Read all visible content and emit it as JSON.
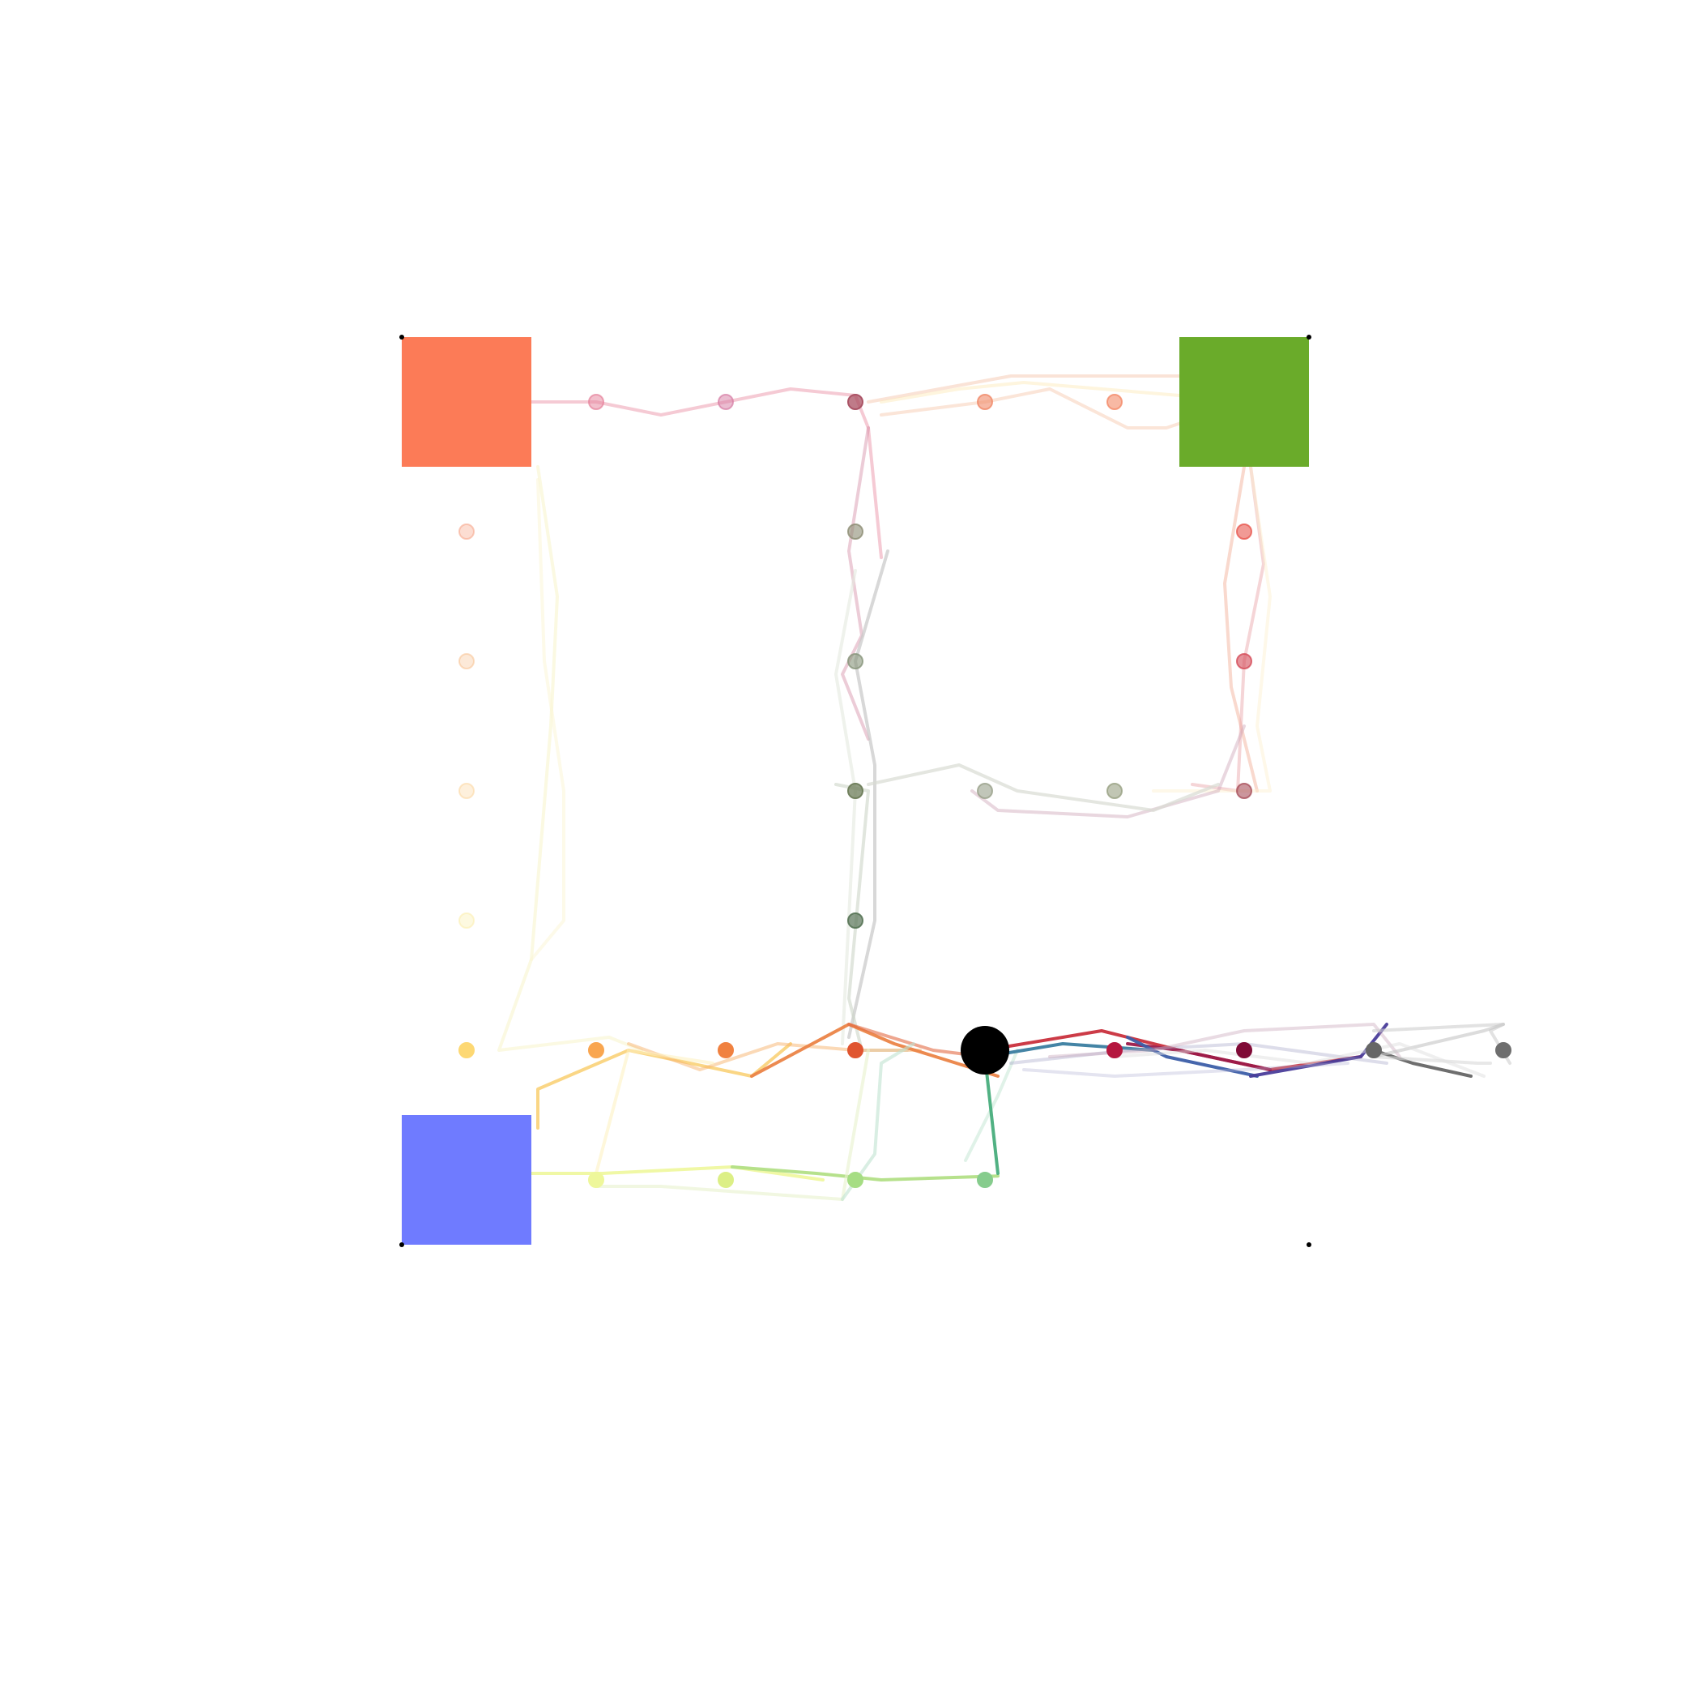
{
  "colors": {
    "background": "#ffffff",
    "agent": "#000000",
    "corner_marker": "#000000"
  },
  "grid": {
    "columns": 9,
    "rows": 8,
    "corner_markers": [
      [
        0,
        0
      ],
      [
        7,
        0
      ],
      [
        0,
        7
      ],
      [
        7,
        7
      ]
    ]
  },
  "goals": [
    {
      "name": "orange-goal",
      "cell": [
        0,
        0
      ],
      "color": "#fc7b57"
    },
    {
      "name": "green-goal",
      "cell": [
        6,
        0
      ],
      "color": "#6aab2a"
    },
    {
      "name": "blue-goal",
      "cell": [
        0,
        6
      ],
      "color": "#6f7bff"
    }
  ],
  "agent": {
    "cell": [
      4,
      5
    ]
  },
  "cell_markers": [
    {
      "cell": [
        1,
        0
      ],
      "color": "#e6809a",
      "opacity": 0.5
    },
    {
      "cell": [
        2,
        0
      ],
      "color": "#d67aa2",
      "opacity": 0.5
    },
    {
      "cell": [
        3,
        0
      ],
      "color": "#a94f62",
      "opacity": 0.75
    },
    {
      "cell": [
        4,
        0
      ],
      "color": "#f08868",
      "opacity": 0.6
    },
    {
      "cell": [
        5,
        0
      ],
      "color": "#f48a68",
      "opacity": 0.6
    },
    {
      "cell": [
        0,
        1
      ],
      "color": "#f7a98e",
      "opacity": 0.4
    },
    {
      "cell": [
        3,
        1
      ],
      "color": "#8c8c73",
      "opacity": 0.6
    },
    {
      "cell": [
        6,
        1
      ],
      "color": "#e8574f",
      "opacity": 0.6
    },
    {
      "cell": [
        0,
        2
      ],
      "color": "#f7c18f",
      "opacity": 0.35
    },
    {
      "cell": [
        3,
        2
      ],
      "color": "#87957a",
      "opacity": 0.6
    },
    {
      "cell": [
        6,
        2
      ],
      "color": "#d44b58",
      "opacity": 0.6
    },
    {
      "cell": [
        0,
        3
      ],
      "color": "#fbd59c",
      "opacity": 0.35
    },
    {
      "cell": [
        3,
        3
      ],
      "color": "#6e7d5a",
      "opacity": 0.75
    },
    {
      "cell": [
        4,
        3
      ],
      "color": "#98a08a",
      "opacity": 0.6
    },
    {
      "cell": [
        5,
        3
      ],
      "color": "#97a082",
      "opacity": 0.6
    },
    {
      "cell": [
        6,
        3
      ],
      "color": "#a9505b",
      "opacity": 0.6
    },
    {
      "cell": [
        0,
        4
      ],
      "color": "#fbefb1",
      "opacity": 0.4
    },
    {
      "cell": [
        3,
        4
      ],
      "color": "#587457",
      "opacity": 0.7
    },
    {
      "cell": [
        0,
        5
      ],
      "color": "#fdd873",
      "opacity": 1
    },
    {
      "cell": [
        1,
        5
      ],
      "color": "#f9a650",
      "opacity": 1
    },
    {
      "cell": [
        2,
        5
      ],
      "color": "#f08140",
      "opacity": 1
    },
    {
      "cell": [
        3,
        5
      ],
      "color": "#e05530",
      "opacity": 1
    },
    {
      "cell": [
        5,
        5
      ],
      "color": "#b5173f",
      "opacity": 1
    },
    {
      "cell": [
        6,
        5
      ],
      "color": "#7f0a36",
      "opacity": 1
    },
    {
      "cell": [
        7,
        5
      ],
      "color": "#666666",
      "opacity": 1
    },
    {
      "cell": [
        8,
        5
      ],
      "color": "#6e6e6e",
      "opacity": 1
    },
    {
      "cell": [
        1,
        6
      ],
      "color": "#eef79b",
      "opacity": 1
    },
    {
      "cell": [
        2,
        6
      ],
      "color": "#dcef86",
      "opacity": 1
    },
    {
      "cell": [
        3,
        6
      ],
      "color": "#a6dd84",
      "opacity": 1
    },
    {
      "cell": [
        4,
        6
      ],
      "color": "#86cc8d",
      "opacity": 1
    }
  ],
  "trails": [
    {
      "color": "#e88aa0",
      "opacity": 0.45,
      "points": [
        [
          0.5,
          0
        ],
        [
          1,
          0
        ],
        [
          1.5,
          0.1
        ],
        [
          2,
          0
        ],
        [
          2.5,
          -0.1
        ],
        [
          3,
          -0.05
        ],
        [
          3.1,
          0.2
        ],
        [
          3.2,
          1.2
        ]
      ]
    },
    {
      "color": "#d0809a",
      "opacity": 0.4,
      "points": [
        [
          3.1,
          0.2
        ],
        [
          2.95,
          1.15
        ],
        [
          3.05,
          1.8
        ],
        [
          2.9,
          2.1
        ],
        [
          3.1,
          2.6
        ]
      ]
    },
    {
      "color": "#f7c6a8",
      "opacity": 0.45,
      "points": [
        [
          3.2,
          0.1
        ],
        [
          4,
          0.0
        ],
        [
          4.5,
          -0.1
        ],
        [
          5.1,
          0.2
        ],
        [
          5.4,
          0.2
        ],
        [
          6,
          0.0
        ]
      ]
    },
    {
      "color": "#f2b89a",
      "opacity": 0.4,
      "points": [
        [
          3.1,
          0.0
        ],
        [
          4.2,
          -0.2
        ],
        [
          4.9,
          -0.2
        ],
        [
          5.5,
          -0.2
        ],
        [
          6,
          0.05
        ]
      ]
    },
    {
      "color": "#fce8b5",
      "opacity": 0.45,
      "points": [
        [
          3.2,
          0.0
        ],
        [
          3.8,
          -0.1
        ],
        [
          4.3,
          -0.15
        ],
        [
          5.5,
          -0.05
        ],
        [
          6,
          0.0
        ]
      ]
    },
    {
      "color": "#f3b49d",
      "opacity": 0.5,
      "points": [
        [
          6,
          0.5
        ],
        [
          5.85,
          1.4
        ],
        [
          5.9,
          2.2
        ],
        [
          6.1,
          3.0
        ]
      ]
    },
    {
      "color": "#e9a1a7",
      "opacity": 0.45,
      "points": [
        [
          6.05,
          0.5
        ],
        [
          6.15,
          1.25
        ],
        [
          6,
          2
        ],
        [
          5.95,
          3
        ],
        [
          5.6,
          2.95
        ]
      ]
    },
    {
      "color": "#fcefcf",
      "opacity": 0.45,
      "points": [
        [
          6.05,
          0.5
        ],
        [
          6.2,
          1.5
        ],
        [
          6.1,
          2.5
        ],
        [
          6.2,
          3
        ],
        [
          5.3,
          3
        ]
      ]
    },
    {
      "color": "#cfa6b8",
      "opacity": 0.45,
      "points": [
        [
          6,
          2.5
        ],
        [
          5.8,
          3
        ],
        [
          5.1,
          3.2
        ],
        [
          4.1,
          3.15
        ],
        [
          3.9,
          3.0
        ]
      ]
    },
    {
      "color": "#c8c8c8",
      "opacity": 0.7,
      "points": [
        [
          3.25,
          1.15
        ],
        [
          3.0,
          2.0
        ],
        [
          3.15,
          2.8
        ],
        [
          3.15,
          4.0
        ],
        [
          2.95,
          4.9
        ]
      ]
    },
    {
      "color": "#d8dcd3",
      "opacity": 0.7,
      "points": [
        [
          3.1,
          2.95
        ],
        [
          3.8,
          2.8
        ],
        [
          4.25,
          3.0
        ],
        [
          5.3,
          3.15
        ],
        [
          5.8,
          2.95
        ]
      ]
    },
    {
      "color": "#cdd5c8",
      "opacity": 0.6,
      "points": [
        [
          2.85,
          2.95
        ],
        [
          3.1,
          3.0
        ],
        [
          2.95,
          4.6
        ],
        [
          3.05,
          5.0
        ],
        [
          3.4,
          5.0
        ]
      ]
    },
    {
      "color": "#e4e9df",
      "opacity": 0.6,
      "points": [
        [
          3.0,
          1.3
        ],
        [
          2.85,
          2.1
        ],
        [
          3.0,
          3.0
        ],
        [
          2.9,
          4.95
        ]
      ]
    },
    {
      "color": "#f7f3c5",
      "opacity": 0.5,
      "points": [
        [
          0.55,
          0.5
        ],
        [
          0.7,
          1.5
        ],
        [
          0.65,
          2.5
        ],
        [
          0.5,
          4.3
        ],
        [
          0.25,
          5.0
        ],
        [
          1.1,
          4.9
        ],
        [
          1.35,
          5.0
        ]
      ]
    },
    {
      "color": "#fcf5d4",
      "opacity": 0.5,
      "points": [
        [
          0.55,
          0.6
        ],
        [
          0.6,
          2.0
        ],
        [
          0.75,
          3.0
        ],
        [
          0.75,
          4.0
        ],
        [
          0.5,
          4.3
        ]
      ]
    },
    {
      "color": "#fad278",
      "opacity": 0.9,
      "points": [
        [
          0.55,
          5.6
        ],
        [
          0.55,
          5.3
        ],
        [
          1.25,
          5.0
        ],
        [
          2.2,
          5.2
        ],
        [
          2.5,
          4.95
        ]
      ]
    },
    {
      "color": "#f7b36d",
      "opacity": 0.5,
      "points": [
        [
          1.25,
          4.95
        ],
        [
          1.8,
          5.15
        ],
        [
          2.4,
          4.95
        ],
        [
          3.0,
          5.0
        ],
        [
          3.5,
          5.0
        ]
      ]
    },
    {
      "color": "#fdf0bd",
      "opacity": 0.55,
      "points": [
        [
          1.0,
          5.95
        ],
        [
          1.25,
          5.0
        ],
        [
          1.9,
          5.1
        ]
      ]
    },
    {
      "color": "#eb8447",
      "opacity": 0.95,
      "points": [
        [
          2.2,
          5.2
        ],
        [
          2.95,
          4.8
        ],
        [
          3.3,
          4.95
        ],
        [
          4.1,
          5.2
        ]
      ]
    },
    {
      "color": "#e36a45",
      "opacity": 0.6,
      "points": [
        [
          2.95,
          4.8
        ],
        [
          3.6,
          5.0
        ],
        [
          4.0,
          5.05
        ]
      ]
    },
    {
      "color": "#eef79b",
      "opacity": 0.9,
      "points": [
        [
          0.5,
          5.95
        ],
        [
          1.05,
          5.95
        ],
        [
          2.05,
          5.9
        ],
        [
          2.75,
          6.0
        ]
      ]
    },
    {
      "color": "#b2df86",
      "opacity": 0.95,
      "points": [
        [
          2.05,
          5.9
        ],
        [
          2.7,
          5.95
        ],
        [
          3.2,
          6.0
        ],
        [
          4.1,
          5.97
        ]
      ]
    },
    {
      "color": "#e8f2cd",
      "opacity": 0.6,
      "points": [
        [
          1.0,
          6.05
        ],
        [
          1.5,
          6.05
        ],
        [
          2.2,
          6.1
        ],
        [
          2.9,
          6.15
        ],
        [
          3.1,
          5.0
        ]
      ]
    },
    {
      "color": "#bfe3d0",
      "opacity": 0.6,
      "points": [
        [
          2.9,
          6.15
        ],
        [
          3.15,
          5.8
        ],
        [
          3.2,
          5.1
        ],
        [
          3.45,
          4.95
        ]
      ]
    },
    {
      "color": "#cce9d8",
      "opacity": 0.6,
      "points": [
        [
          3.85,
          5.85
        ],
        [
          4.1,
          5.35
        ],
        [
          4.25,
          5.0
        ]
      ]
    },
    {
      "color": "#48ad7c",
      "opacity": 0.95,
      "points": [
        [
          4.1,
          5.95
        ],
        [
          4.0,
          5.05
        ]
      ]
    },
    {
      "color": "#c9303d",
      "opacity": 0.95,
      "points": [
        [
          4.0,
          5.0
        ],
        [
          4.9,
          4.85
        ],
        [
          5.5,
          5.0
        ],
        [
          6.2,
          5.15
        ],
        [
          6.9,
          5.05
        ]
      ]
    },
    {
      "color": "#9b1a4a",
      "opacity": 0.95,
      "points": [
        [
          5.1,
          4.95
        ],
        [
          5.5,
          5.0
        ],
        [
          6.2,
          5.15
        ]
      ]
    },
    {
      "color": "#3a7da0",
      "opacity": 0.95,
      "points": [
        [
          4.0,
          5.05
        ],
        [
          4.6,
          4.95
        ],
        [
          5.3,
          5.0
        ]
      ]
    },
    {
      "color": "#3c5ea8",
      "opacity": 0.95,
      "points": [
        [
          5.1,
          4.9
        ],
        [
          5.4,
          5.05
        ],
        [
          6.1,
          5.2
        ]
      ]
    },
    {
      "color": "#4a3d9a",
      "opacity": 0.95,
      "points": [
        [
          6.05,
          5.2
        ],
        [
          6.9,
          5.05
        ],
        [
          7.1,
          4.8
        ]
      ]
    },
    {
      "color": "#666666",
      "opacity": 0.95,
      "points": [
        [
          7.0,
          5.0
        ],
        [
          7.3,
          5.1
        ],
        [
          7.75,
          5.2
        ]
      ]
    },
    {
      "color": "#9e9ec4",
      "opacity": 0.35,
      "points": [
        [
          4.2,
          5.1
        ],
        [
          5.1,
          5.0
        ],
        [
          6.0,
          4.95
        ],
        [
          7.1,
          5.1
        ]
      ]
    },
    {
      "color": "#b3b3d4",
      "opacity": 0.35,
      "points": [
        [
          4.3,
          5.15
        ],
        [
          5.0,
          5.2
        ],
        [
          6.0,
          5.15
        ],
        [
          6.8,
          5.1
        ]
      ]
    },
    {
      "color": "#c8a6b8",
      "opacity": 0.4,
      "points": [
        [
          4.5,
          5.05
        ],
        [
          5.3,
          5.0
        ],
        [
          6.0,
          4.85
        ],
        [
          7.0,
          4.8
        ],
        [
          7.2,
          5.05
        ]
      ]
    },
    {
      "color": "#cfcfcf",
      "opacity": 0.6,
      "points": [
        [
          7.0,
          4.85
        ],
        [
          8.0,
          4.8
        ],
        [
          7.9,
          4.85
        ],
        [
          8.05,
          5.1
        ]
      ]
    },
    {
      "color": "#d9d9d9",
      "opacity": 0.6,
      "points": [
        [
          7.0,
          5.05
        ],
        [
          7.8,
          5.1
        ],
        [
          7.9,
          5.1
        ]
      ]
    },
    {
      "color": "#c4c4c4",
      "opacity": 0.6,
      "points": [
        [
          7.0,
          5.05
        ],
        [
          7.85,
          4.85
        ],
        [
          8.0,
          4.8
        ]
      ]
    },
    {
      "color": "#e0e0e0",
      "opacity": 0.5,
      "points": [
        [
          5.0,
          5.05
        ],
        [
          5.7,
          5.0
        ],
        [
          6.5,
          5.1
        ],
        [
          7.2,
          4.95
        ],
        [
          7.85,
          5.2
        ]
      ]
    }
  ]
}
